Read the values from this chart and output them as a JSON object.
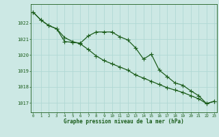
{
  "xlabel": "Graphe pression niveau de la mer (hPa)",
  "ylabel": "",
  "background_color": "#cce8e4",
  "grid_color": "#b0d8d4",
  "line_color": "#1a5c1a",
  "x_ticks": [
    0,
    1,
    2,
    3,
    4,
    5,
    6,
    7,
    8,
    9,
    10,
    11,
    12,
    13,
    14,
    15,
    16,
    17,
    18,
    19,
    20,
    21,
    22,
    23
  ],
  "ylim": [
    1016.4,
    1023.2
  ],
  "xlim": [
    -0.3,
    23.3
  ],
  "yticks": [
    1017,
    1018,
    1019,
    1020,
    1021,
    1022
  ],
  "series1": [
    1022.7,
    1022.2,
    1021.85,
    1021.65,
    1020.85,
    1020.8,
    1020.75,
    1021.2,
    1021.45,
    1021.45,
    1021.45,
    1021.15,
    1020.95,
    1020.45,
    1019.75,
    1020.05,
    1019.05,
    1018.65,
    1018.25,
    1018.1,
    1017.75,
    1017.45,
    1016.95,
    1017.1
  ],
  "series2": [
    1022.7,
    1022.2,
    1021.85,
    1021.65,
    1021.1,
    1020.85,
    1020.7,
    1020.35,
    1019.95,
    1019.65,
    1019.45,
    1019.25,
    1019.05,
    1018.75,
    1018.55,
    1018.35,
    1018.15,
    1017.95,
    1017.8,
    1017.65,
    1017.45,
    1017.25,
    1016.95,
    1017.1
  ],
  "marker": "+",
  "markersize": 4,
  "markeredgewidth": 0.8,
  "linewidth": 0.9
}
